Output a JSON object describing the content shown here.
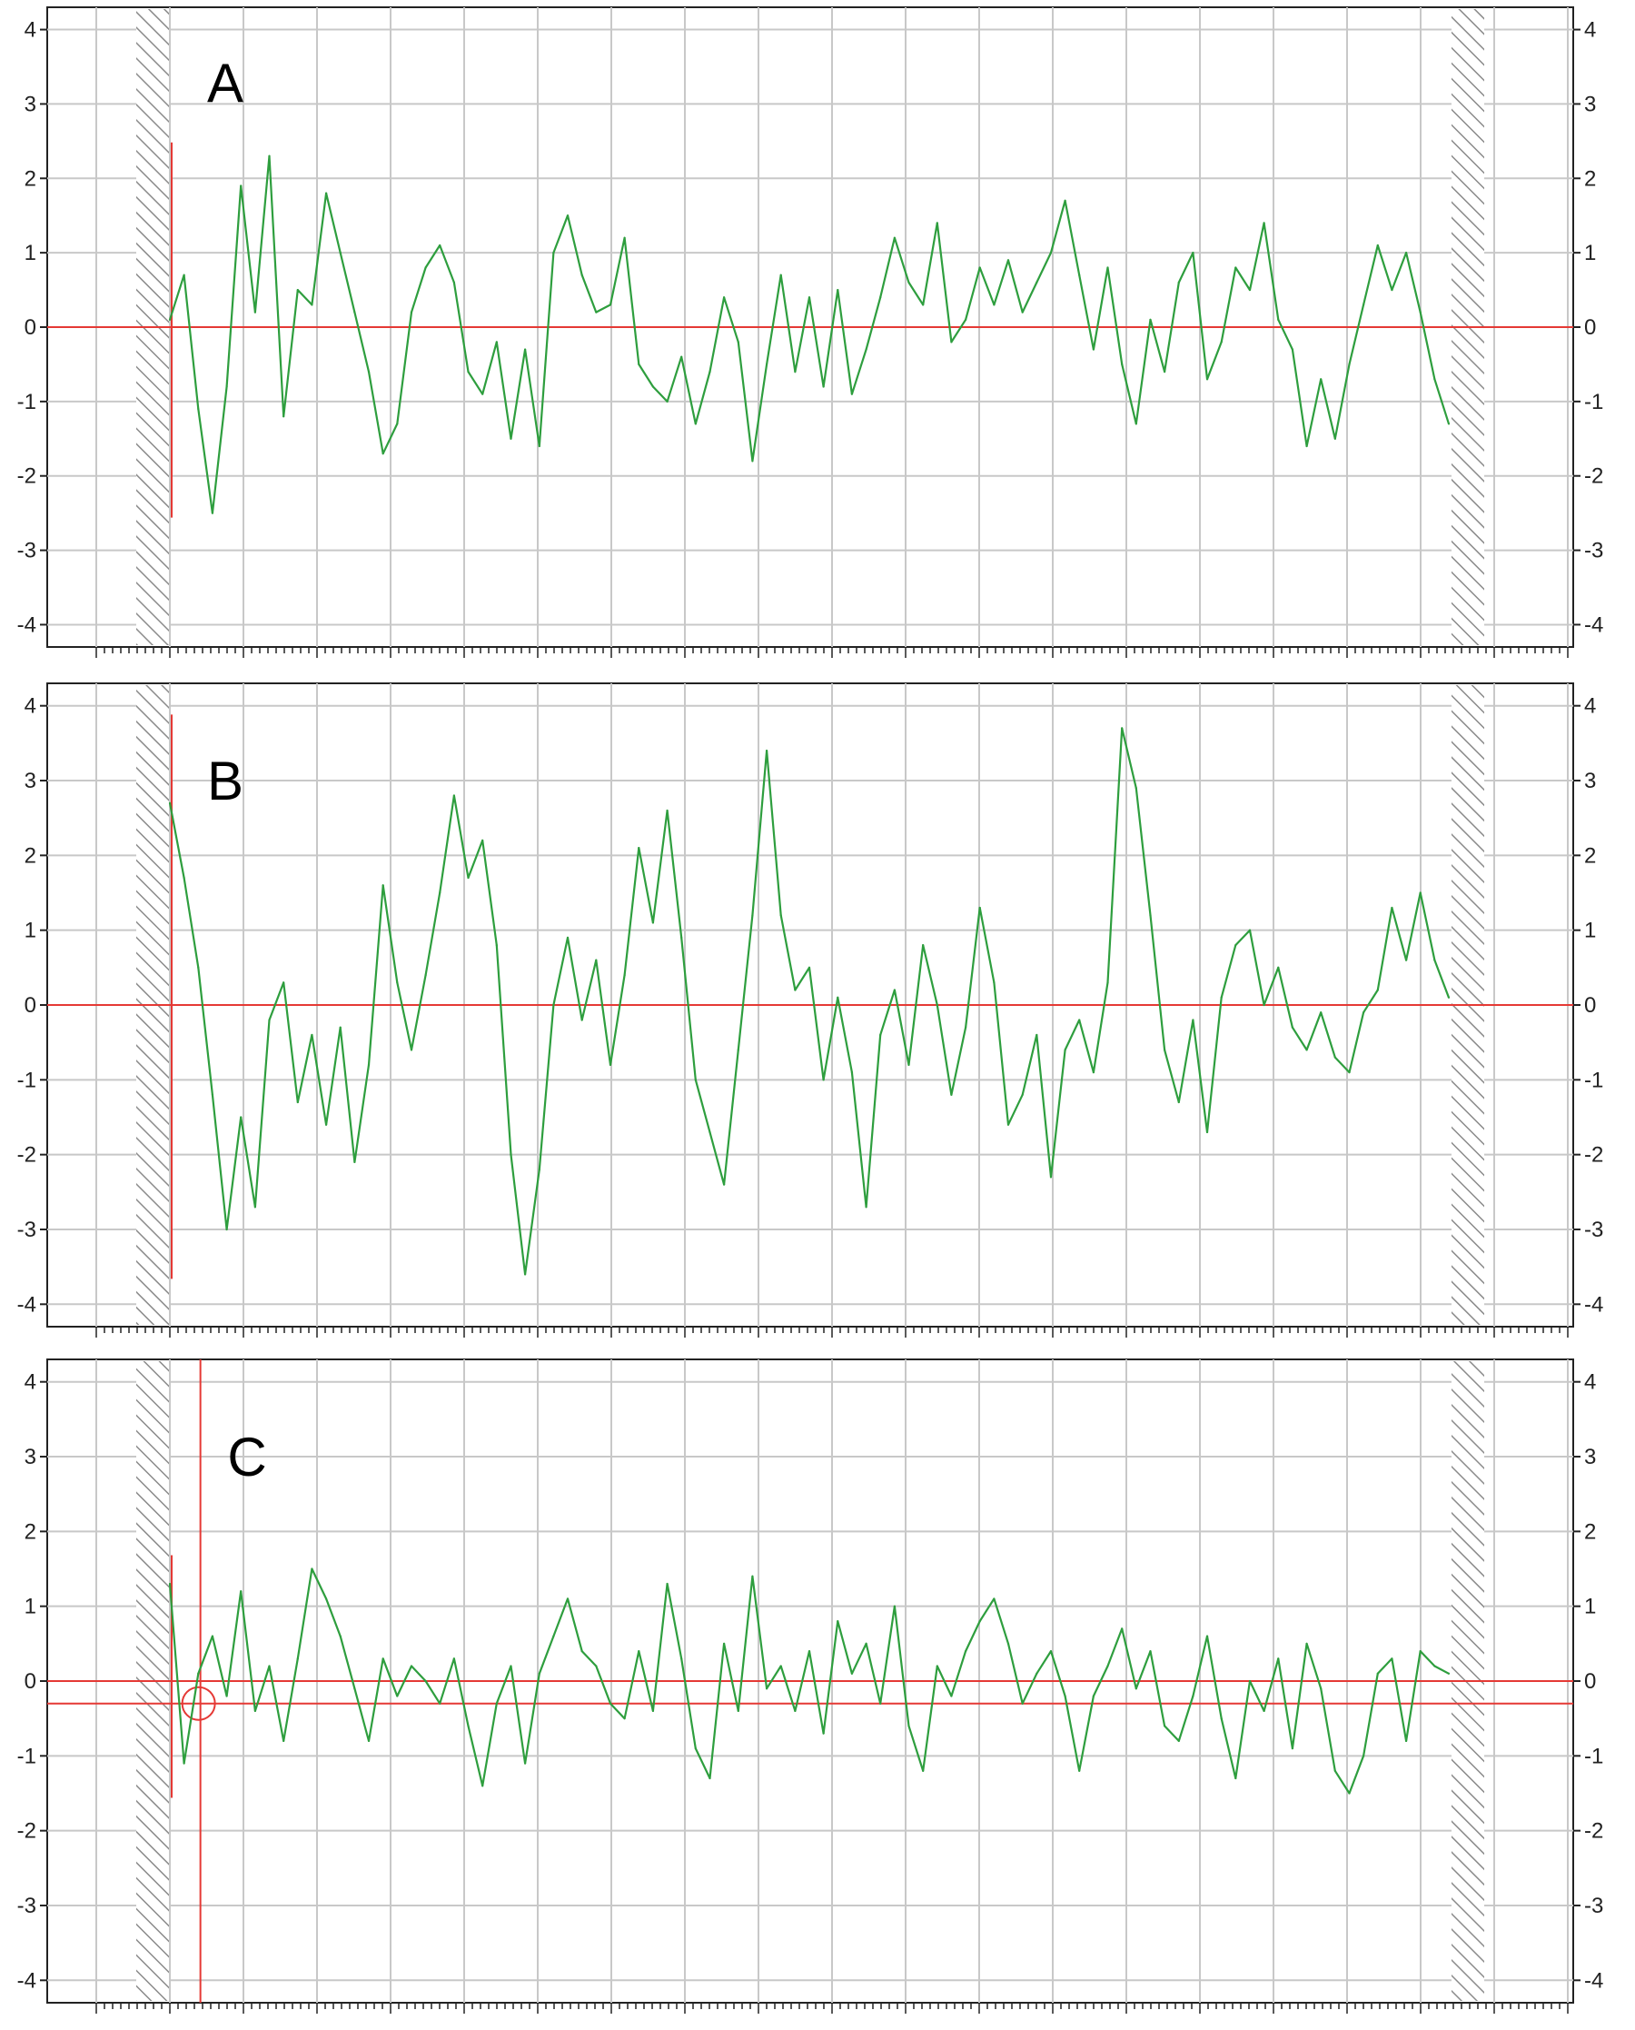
{
  "colors": {
    "trace": "#2e9e3e",
    "reference": "#e53935",
    "grid": "#c8c8c8",
    "frame": "#222222",
    "hatch": "#8a8a8a"
  },
  "chart_data": [
    {
      "type": "line",
      "panel_label": "A",
      "ylim": [
        -4.3,
        4.3
      ],
      "yticks": [
        "-4",
        "-3",
        "-2",
        "-1",
        "0",
        "1",
        "2",
        "3",
        "4"
      ],
      "grid": true,
      "reference_line_y": 0,
      "x": [
        0,
        1,
        2,
        3,
        4,
        5,
        6,
        7,
        8,
        9,
        10,
        11,
        12,
        13,
        14,
        15,
        16,
        17,
        18,
        19,
        20,
        21,
        22,
        23,
        24,
        25,
        26,
        27,
        28,
        29,
        30,
        31,
        32,
        33,
        34,
        35,
        36,
        37,
        38,
        39,
        40,
        41,
        42,
        43,
        44,
        45,
        46,
        47,
        48,
        49,
        50,
        51,
        52,
        53,
        54,
        55,
        56,
        57,
        58,
        59,
        60,
        61,
        62,
        63,
        64,
        65,
        66,
        67,
        68,
        69,
        70,
        71,
        72,
        73,
        74,
        75,
        76,
        77,
        78,
        79,
        80,
        81,
        82,
        83,
        84,
        85,
        86,
        87,
        88,
        89,
        90
      ],
      "values": [
        0.1,
        0.7,
        -1.1,
        -2.5,
        -0.8,
        1.9,
        0.2,
        2.3,
        -1.2,
        0.5,
        0.3,
        1.8,
        1.0,
        0.2,
        -0.6,
        -1.7,
        -1.3,
        0.2,
        0.8,
        1.1,
        0.6,
        -0.6,
        -0.9,
        -0.2,
        -1.5,
        -0.3,
        -1.6,
        1.0,
        1.5,
        0.7,
        0.2,
        0.3,
        1.2,
        -0.5,
        -0.8,
        -1.0,
        -0.4,
        -1.3,
        -0.6,
        0.4,
        -0.2,
        -1.8,
        -0.5,
        0.7,
        -0.6,
        0.4,
        -0.8,
        0.5,
        -0.9,
        -0.3,
        0.4,
        1.2,
        0.6,
        0.3,
        1.4,
        -0.2,
        0.1,
        0.8,
        0.3,
        0.9,
        0.2,
        0.6,
        1.0,
        1.7,
        0.7,
        -0.3,
        0.8,
        -0.5,
        -1.3,
        0.1,
        -0.6,
        0.6,
        1.0,
        -0.7,
        -0.2,
        0.8,
        0.5,
        1.4,
        0.1,
        -0.3,
        -1.6,
        -0.7,
        -1.5,
        -0.5,
        0.3,
        1.1,
        0.5,
        1.0,
        0.2,
        -0.7,
        -1.3
      ]
    },
    {
      "type": "line",
      "panel_label": "B",
      "ylim": [
        -4.3,
        4.3
      ],
      "yticks": [
        "-4",
        "-3",
        "-2",
        "-1",
        "0",
        "1",
        "2",
        "3",
        "4"
      ],
      "grid": true,
      "reference_line_y": 0,
      "x": [
        0,
        1,
        2,
        3,
        4,
        5,
        6,
        7,
        8,
        9,
        10,
        11,
        12,
        13,
        14,
        15,
        16,
        17,
        18,
        19,
        20,
        21,
        22,
        23,
        24,
        25,
        26,
        27,
        28,
        29,
        30,
        31,
        32,
        33,
        34,
        35,
        36,
        37,
        38,
        39,
        40,
        41,
        42,
        43,
        44,
        45,
        46,
        47,
        48,
        49,
        50,
        51,
        52,
        53,
        54,
        55,
        56,
        57,
        58,
        59,
        60,
        61,
        62,
        63,
        64,
        65,
        66,
        67,
        68,
        69,
        70,
        71,
        72,
        73,
        74,
        75,
        76,
        77,
        78,
        79,
        80,
        81,
        82,
        83,
        84,
        85,
        86,
        87,
        88,
        89,
        90
      ],
      "values": [
        2.7,
        1.7,
        0.5,
        -1.2,
        -3.0,
        -1.5,
        -2.7,
        -0.2,
        0.3,
        -1.3,
        -0.4,
        -1.6,
        -0.3,
        -2.1,
        -0.8,
        1.6,
        0.3,
        -0.6,
        0.4,
        1.5,
        2.8,
        1.7,
        2.2,
        0.8,
        -2.0,
        -3.6,
        -2.2,
        0.0,
        0.9,
        -0.2,
        0.6,
        -0.8,
        0.4,
        2.1,
        1.1,
        2.6,
        0.9,
        -1.0,
        -1.7,
        -2.4,
        -0.6,
        1.2,
        3.4,
        1.2,
        0.2,
        0.5,
        -1.0,
        0.1,
        -0.9,
        -2.7,
        -0.4,
        0.2,
        -0.8,
        0.8,
        0.0,
        -1.2,
        -0.3,
        1.3,
        0.3,
        -1.6,
        -1.2,
        -0.4,
        -2.3,
        -0.6,
        -0.2,
        -0.9,
        0.3,
        3.7,
        2.9,
        1.2,
        -0.6,
        -1.3,
        -0.2,
        -1.7,
        0.1,
        0.8,
        1.0,
        0.0,
        0.5,
        -0.3,
        -0.6,
        -0.1,
        -0.7,
        -0.9,
        -0.1,
        0.2,
        1.3,
        0.6,
        1.5,
        0.6,
        0.1
      ]
    },
    {
      "type": "line",
      "panel_label": "C",
      "ylim": [
        -4.3,
        4.3
      ],
      "yticks": [
        "-4",
        "-3",
        "-2",
        "-1",
        "0",
        "1",
        "2",
        "3",
        "4"
      ],
      "grid": true,
      "reference_line_y": 0,
      "baseline_y": -0.3,
      "cursor_x": 1,
      "x": [
        0,
        1,
        2,
        3,
        4,
        5,
        6,
        7,
        8,
        9,
        10,
        11,
        12,
        13,
        14,
        15,
        16,
        17,
        18,
        19,
        20,
        21,
        22,
        23,
        24,
        25,
        26,
        27,
        28,
        29,
        30,
        31,
        32,
        33,
        34,
        35,
        36,
        37,
        38,
        39,
        40,
        41,
        42,
        43,
        44,
        45,
        46,
        47,
        48,
        49,
        50,
        51,
        52,
        53,
        54,
        55,
        56,
        57,
        58,
        59,
        60,
        61,
        62,
        63,
        64,
        65,
        66,
        67,
        68,
        69,
        70,
        71,
        72,
        73,
        74,
        75,
        76,
        77,
        78,
        79,
        80,
        81,
        82,
        83,
        84,
        85,
        86,
        87,
        88,
        89,
        90
      ],
      "values": [
        1.3,
        -1.1,
        0.1,
        0.6,
        -0.2,
        1.2,
        -0.4,
        0.2,
        -0.8,
        0.3,
        1.5,
        1.1,
        0.6,
        -0.1,
        -0.8,
        0.3,
        -0.2,
        0.2,
        0.0,
        -0.3,
        0.3,
        -0.6,
        -1.4,
        -0.3,
        0.2,
        -1.1,
        0.1,
        0.6,
        1.1,
        0.4,
        0.2,
        -0.3,
        -0.5,
        0.4,
        -0.4,
        1.3,
        0.3,
        -0.9,
        -1.3,
        0.5,
        -0.4,
        1.4,
        -0.1,
        0.2,
        -0.4,
        0.4,
        -0.7,
        0.8,
        0.1,
        0.5,
        -0.3,
        1.0,
        -0.6,
        -1.2,
        0.2,
        -0.2,
        0.4,
        0.8,
        1.1,
        0.5,
        -0.3,
        0.1,
        0.4,
        -0.2,
        -1.2,
        -0.2,
        0.2,
        0.7,
        -0.1,
        0.4,
        -0.6,
        -0.8,
        -0.2,
        0.6,
        -0.5,
        -1.3,
        0.0,
        -0.4,
        0.3,
        -0.9,
        0.5,
        -0.1,
        -1.2,
        -1.5,
        -1.0,
        0.1,
        0.3,
        -0.8,
        0.4,
        0.2,
        0.1
      ]
    }
  ]
}
